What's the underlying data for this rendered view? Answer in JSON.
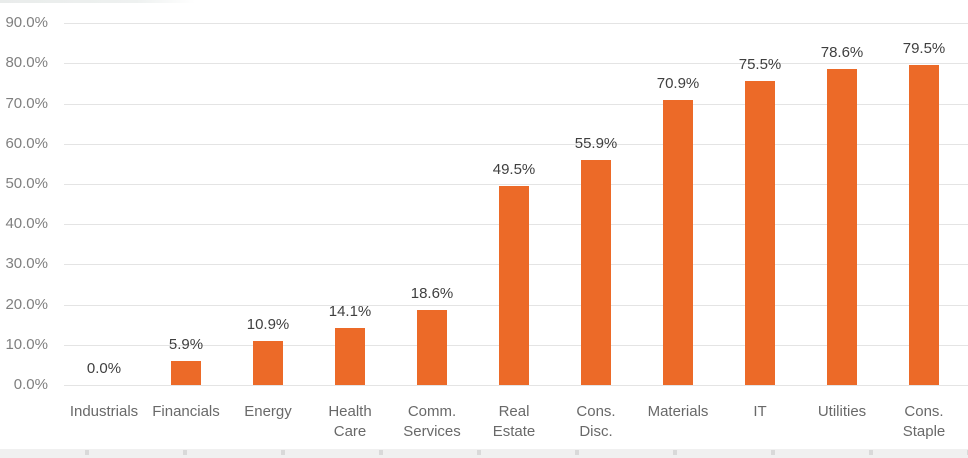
{
  "chart_data": {
    "type": "bar",
    "title": "",
    "categories": [
      "Industrials",
      "Financials",
      "Energy",
      "Health Care",
      "Comm. Services",
      "Real Estate",
      "Cons. Disc.",
      "Materials",
      "IT",
      "Utilities",
      "Cons. Staple"
    ],
    "category_lines": [
      [
        "Industrials"
      ],
      [
        "Financials"
      ],
      [
        "Energy"
      ],
      [
        "Health",
        "Care"
      ],
      [
        "Comm.",
        "Services"
      ],
      [
        "Real",
        "Estate"
      ],
      [
        "Cons.",
        "Disc."
      ],
      [
        "Materials"
      ],
      [
        "IT"
      ],
      [
        "Utilities"
      ],
      [
        "Cons.",
        "Staple"
      ]
    ],
    "values": [
      0.0,
      5.9,
      10.9,
      14.1,
      18.6,
      49.5,
      55.9,
      70.9,
      75.5,
      78.6,
      79.5
    ],
    "data_labels": [
      "0.0%",
      "5.9%",
      "10.9%",
      "14.1%",
      "18.6%",
      "49.5%",
      "55.9%",
      "70.9%",
      "75.5%",
      "78.6%",
      "79.5%"
    ],
    "xlabel": "",
    "ylabel": "",
    "ylim": [
      0,
      90
    ],
    "y_axis": {
      "min": 0,
      "max": 90,
      "step": 10,
      "tick_labels": [
        "0.0%",
        "10.0%",
        "20.0%",
        "30.0%",
        "40.0%",
        "50.0%",
        "60.0%",
        "70.0%",
        "80.0%",
        "90.0%"
      ]
    },
    "grid": true,
    "legend": false,
    "colors": {
      "bar": "#EC6A28",
      "gridline": "#E4E4E4",
      "y_tick_label": "#7F7F7F",
      "data_label": "#3F3F3F",
      "category_label": "#696969",
      "bottom_strip": "#F0F0F0",
      "bottom_tick": "#D9D9D9"
    }
  }
}
